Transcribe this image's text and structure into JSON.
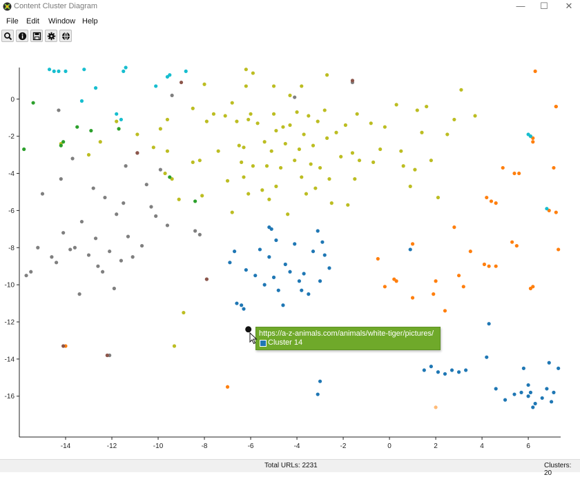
{
  "window": {
    "title": "Content Cluster Diagram",
    "minimize": "—",
    "maximize": "☐",
    "close": "✕"
  },
  "menu": [
    "File",
    "Edit",
    "Window",
    "Help"
  ],
  "toolbar": [
    {
      "name": "search-tool-button",
      "icon": "magnifier-icon"
    },
    {
      "name": "info-tool-button",
      "icon": "info-icon"
    },
    {
      "name": "save-tool-button",
      "icon": "floppy-disk-icon"
    },
    {
      "name": "settings-tool-button",
      "icon": "gear-icon"
    },
    {
      "name": "globe-tool-button",
      "icon": "globe-icon"
    }
  ],
  "tooltip": {
    "url": "https://a-z-animals.com/animals/white-tiger/pictures/",
    "cluster": "Cluster 14",
    "color": "#1f77b4"
  },
  "status": {
    "total": "Total URLs: 2231",
    "clusters": "Clusters: 20"
  },
  "chart_data": {
    "type": "scatter",
    "title": "",
    "xlabel": "",
    "ylabel": "",
    "xlim": [
      -16,
      7.4
    ],
    "ylim": [
      -18.2,
      1.7
    ],
    "xticks": [
      -14,
      -12,
      -10,
      -8,
      -6,
      -4,
      -2,
      0,
      2,
      4,
      6
    ],
    "yticks": [
      0,
      -2,
      -4,
      -6,
      -8,
      -10,
      -12,
      -14,
      -16
    ],
    "grid": false,
    "highlight": {
      "x": -6.1,
      "y": -12.4,
      "cluster": "Cluster 14"
    },
    "series": [
      {
        "color": "#bcbd22",
        "points": [
          [
            -14.2,
            -2.4
          ],
          [
            -13,
            -3
          ],
          [
            -12.5,
            -2.3
          ],
          [
            -11.8,
            -1.2
          ],
          [
            -10.9,
            -1.9
          ],
          [
            -10.2,
            -2.6
          ],
          [
            -9.9,
            -1.6
          ],
          [
            -9.6,
            -2.8
          ],
          [
            -9.7,
            -4
          ],
          [
            -9.4,
            -4.3
          ],
          [
            -9.6,
            -1.1
          ],
          [
            -9.1,
            -5.4
          ],
          [
            -8.9,
            -11.5
          ],
          [
            -9.3,
            -13.3
          ],
          [
            -8.5,
            -3.4
          ],
          [
            -8.2,
            -3.3
          ],
          [
            -8.5,
            -0.5
          ],
          [
            -8.1,
            -5.2
          ],
          [
            -7.9,
            -1.2
          ],
          [
            -7.6,
            -0.8
          ],
          [
            -7.4,
            -2.8
          ],
          [
            -7.1,
            -0.9
          ],
          [
            -7,
            -4.4
          ],
          [
            -6.8,
            -0.2
          ],
          [
            -6.8,
            -6.1
          ],
          [
            -6.6,
            -1.2
          ],
          [
            -6.5,
            -2.5
          ],
          [
            -6.4,
            -3.4
          ],
          [
            -6.3,
            -4.2
          ],
          [
            -6.3,
            -2.6
          ],
          [
            -6.1,
            -1.1
          ],
          [
            -6.1,
            -5.1
          ],
          [
            -6,
            -0.8
          ],
          [
            -5.9,
            -3.6
          ],
          [
            -5.7,
            -1.3
          ],
          [
            -5.5,
            -4.9
          ],
          [
            -5.4,
            -2.3
          ],
          [
            -5.3,
            -3.6
          ],
          [
            -5.2,
            -5.4
          ],
          [
            -5.1,
            -2.8
          ],
          [
            -5,
            -0.8
          ],
          [
            -4.9,
            -1.7
          ],
          [
            -4.9,
            -4.7
          ],
          [
            -4.7,
            -3.7
          ],
          [
            -4.6,
            -1.5
          ],
          [
            -4.5,
            -2.4
          ],
          [
            -4.4,
            -6.2
          ],
          [
            -4.3,
            -1.4
          ],
          [
            -4.1,
            -3.3
          ],
          [
            -4,
            -0.7
          ],
          [
            -3.9,
            -2.7
          ],
          [
            -3.8,
            -4.2
          ],
          [
            -3.7,
            -1.9
          ],
          [
            -3.6,
            -5.1
          ],
          [
            -3.5,
            -0.9
          ],
          [
            -3.4,
            -3.5
          ],
          [
            -3.3,
            -2.5
          ],
          [
            -3.2,
            -4.8
          ],
          [
            -3.1,
            -1.2
          ],
          [
            -3,
            -3.7
          ],
          [
            -2.8,
            -0.6
          ],
          [
            -2.7,
            -2.1
          ],
          [
            -2.6,
            -4.3
          ],
          [
            -2.5,
            -5.6
          ],
          [
            -2.3,
            -1.8
          ],
          [
            -2.1,
            -3.1
          ],
          [
            -1.9,
            -1.4
          ],
          [
            -1.8,
            -5.7
          ],
          [
            -1.6,
            -2.9
          ],
          [
            -1.5,
            -4.3
          ],
          [
            -1.4,
            -0.8
          ],
          [
            -1.3,
            -3.3
          ],
          [
            -0.8,
            -1.3
          ],
          [
            -0.7,
            -3.4
          ],
          [
            -0.4,
            -2.7
          ],
          [
            -0.2,
            -1.5
          ],
          [
            0.3,
            -0.3
          ],
          [
            0.5,
            -2.8
          ],
          [
            0.6,
            -3.6
          ],
          [
            0.9,
            -4.7
          ],
          [
            1.1,
            -3.8
          ],
          [
            1.2,
            -0.6
          ],
          [
            1.4,
            -1.8
          ],
          [
            1.6,
            -0.4
          ],
          [
            1.8,
            -3.3
          ],
          [
            2.1,
            -5.3
          ],
          [
            2.5,
            -1.9
          ],
          [
            2.8,
            -1.1
          ],
          [
            3.1,
            0.5
          ],
          [
            3.7,
            -0.9
          ],
          [
            -3.8,
            0.7
          ],
          [
            -4.3,
            0.2
          ],
          [
            -6.2,
            1.6
          ],
          [
            -5.9,
            1.4
          ],
          [
            -5,
            0.7
          ],
          [
            -6.2,
            0.7
          ],
          [
            -8,
            0.8
          ],
          [
            -2.7,
            1.3
          ]
        ]
      },
      {
        "color": "#7f7f7f",
        "points": [
          [
            -15.7,
            -9.5
          ],
          [
            -15.5,
            -9.3
          ],
          [
            -15.2,
            -8
          ],
          [
            -15,
            -5.1
          ],
          [
            -14.6,
            -8.5
          ],
          [
            -14.4,
            -8.8
          ],
          [
            -14.3,
            -0.6
          ],
          [
            -14.2,
            -4.3
          ],
          [
            -14.1,
            -7.2
          ],
          [
            -13.7,
            -3.2
          ],
          [
            -13.6,
            -8
          ],
          [
            -13.4,
            -10.5
          ],
          [
            -13.3,
            -6.6
          ],
          [
            -13,
            -8.4
          ],
          [
            -12.8,
            -4.8
          ],
          [
            -12.7,
            -7.5
          ],
          [
            -12.6,
            -9
          ],
          [
            -12.4,
            -9.3
          ],
          [
            -12.3,
            -5.3
          ],
          [
            -12.1,
            -8.2
          ],
          [
            -11.9,
            -10.2
          ],
          [
            -11.8,
            -6.2
          ],
          [
            -11.6,
            -8.7
          ],
          [
            -11.5,
            -5.6
          ],
          [
            -11.4,
            -3.6
          ],
          [
            -11.3,
            -7.4
          ],
          [
            -11.1,
            -8.5
          ],
          [
            -10.9,
            -2.9
          ],
          [
            -10.7,
            -7.9
          ],
          [
            -10.5,
            -4.6
          ],
          [
            -10.3,
            -5.8
          ],
          [
            -10.1,
            -6.3
          ],
          [
            -9.9,
            -3.8
          ],
          [
            -9.6,
            -6.8
          ],
          [
            -9.4,
            0.2
          ],
          [
            -8.2,
            -7.3
          ],
          [
            -8.4,
            -7.1
          ],
          [
            -7.9,
            -9.7
          ],
          [
            -12.1,
            -13.8
          ],
          [
            -4.1,
            0.1
          ],
          [
            -1.6,
            0.9
          ],
          [
            -13.8,
            -8.1
          ]
        ]
      },
      {
        "color": "#1f77b4",
        "points": [
          [
            -6.1,
            -12.4
          ],
          [
            -6.6,
            -11
          ],
          [
            -6.4,
            -11.1
          ],
          [
            -6.2,
            -9.2
          ],
          [
            -5.8,
            -9.5
          ],
          [
            -5.6,
            -8.1
          ],
          [
            -5.4,
            -10
          ],
          [
            -5.2,
            -8.5
          ],
          [
            -5,
            -9.6
          ],
          [
            -4.9,
            -7.6
          ],
          [
            -4.8,
            -10.3
          ],
          [
            -4.6,
            -11.1
          ],
          [
            -4.5,
            -8.9
          ],
          [
            -4.3,
            -9.3
          ],
          [
            -4.1,
            -7.8
          ],
          [
            -3.9,
            -9.8
          ],
          [
            -3.7,
            -9.4
          ],
          [
            -3.5,
            -10.5
          ],
          [
            -3.3,
            -8.2
          ],
          [
            -3.1,
            -7.1
          ],
          [
            -3,
            -9.8
          ],
          [
            -2.9,
            -7.7
          ],
          [
            -2.8,
            -8.4
          ],
          [
            -2.6,
            -9.1
          ],
          [
            -3.1,
            -15.9
          ],
          [
            -3,
            -15.2
          ],
          [
            -6.7,
            -8.2
          ],
          [
            -5.1,
            -7
          ],
          [
            -6.9,
            -8.8
          ],
          [
            1.5,
            -14.6
          ],
          [
            1.8,
            -14.4
          ],
          [
            2.1,
            -14.7
          ],
          [
            2.4,
            -14.8
          ],
          [
            2.7,
            -14.6
          ],
          [
            3,
            -14.7
          ],
          [
            3.3,
            -14.6
          ],
          [
            4.2,
            -13.9
          ],
          [
            4.6,
            -15.6
          ],
          [
            5,
            -16.2
          ],
          [
            5.4,
            -15.9
          ],
          [
            5.7,
            -15.8
          ],
          [
            6,
            -15.4
          ],
          [
            6.1,
            -15.8
          ],
          [
            6.3,
            -16.4
          ],
          [
            6.6,
            -16.1
          ],
          [
            6.8,
            -15.6
          ],
          [
            7,
            -16.3
          ],
          [
            7.1,
            -15.8
          ],
          [
            7.3,
            -14.5
          ],
          [
            6.2,
            -16.6
          ],
          [
            6,
            -16
          ],
          [
            5.8,
            -14.5
          ],
          [
            6.9,
            -14.2
          ],
          [
            4.3,
            -12.1
          ],
          [
            0.9,
            -8.1
          ],
          [
            -6.3,
            -11.3
          ],
          [
            -5.2,
            -6.9
          ],
          [
            -3.8,
            -10.3
          ]
        ]
      },
      {
        "color": "#ff7f0e",
        "points": [
          [
            6.3,
            1.5
          ],
          [
            7.2,
            -0.4
          ],
          [
            6.1,
            -2
          ],
          [
            6.2,
            -2.1
          ],
          [
            4.9,
            -3.7
          ],
          [
            5.6,
            -4
          ],
          [
            5.4,
            -4
          ],
          [
            7.1,
            -3.7
          ],
          [
            4.2,
            -5.3
          ],
          [
            4.4,
            -5.5
          ],
          [
            4.6,
            -5.6
          ],
          [
            6.9,
            -6
          ],
          [
            7.2,
            -6.1
          ],
          [
            5.3,
            -7.7
          ],
          [
            5.5,
            -7.9
          ],
          [
            7.3,
            -8.1
          ],
          [
            4.1,
            -8.9
          ],
          [
            4.3,
            -9
          ],
          [
            4.6,
            -9
          ],
          [
            3.5,
            -8.2
          ],
          [
            2.8,
            -6.9
          ],
          [
            3,
            -9.5
          ],
          [
            3.2,
            -10.1
          ],
          [
            2,
            -9.8
          ],
          [
            1,
            -7.8
          ],
          [
            0.3,
            -9.8
          ],
          [
            -0.2,
            -10.1
          ],
          [
            -0.5,
            -8.6
          ],
          [
            1,
            -10.7
          ],
          [
            2.4,
            -11.4
          ],
          [
            6.1,
            -10.2
          ],
          [
            6.2,
            -10.1
          ],
          [
            -14,
            -13.3
          ],
          [
            -7,
            -15.5
          ],
          [
            6.2,
            -2.3
          ],
          [
            0.2,
            -9.7
          ],
          [
            1.9,
            -10.5
          ],
          [
            7.2,
            -0.4
          ]
        ]
      },
      {
        "color": "#17becf",
        "points": [
          [
            -14.7,
            1.6
          ],
          [
            -14.5,
            1.5
          ],
          [
            -14.3,
            1.5
          ],
          [
            -14,
            1.5
          ],
          [
            -13.2,
            1.6
          ],
          [
            -12.7,
            0.6
          ],
          [
            -11.5,
            1.5
          ],
          [
            -11.4,
            1.7
          ],
          [
            -10.1,
            0.7
          ],
          [
            -9.6,
            1.2
          ],
          [
            -9.5,
            1.3
          ],
          [
            -8.8,
            1.5
          ],
          [
            -13.3,
            -0.1
          ],
          [
            -11.8,
            -0.8
          ],
          [
            -11.6,
            -1.1
          ],
          [
            6,
            -1.9
          ],
          [
            6.1,
            -2
          ],
          [
            6.8,
            -5.9
          ]
        ]
      },
      {
        "color": "#2ca02c",
        "points": [
          [
            -15.8,
            -2.7
          ],
          [
            -15.4,
            -0.2
          ],
          [
            -14.1,
            -2.3
          ],
          [
            -13.5,
            -1.5
          ],
          [
            -12.9,
            -1.7
          ],
          [
            -11.7,
            -1.6
          ],
          [
            -9.5,
            -4.2
          ],
          [
            -8.4,
            -5.5
          ],
          [
            -14.2,
            -2.5
          ]
        ]
      },
      {
        "color": "#8c564b",
        "points": [
          [
            -10.9,
            -2.9
          ],
          [
            -7.9,
            -9.7
          ],
          [
            -12.2,
            -13.8
          ],
          [
            -14.1,
            -13.3
          ],
          [
            -1.6,
            1
          ],
          [
            -9,
            0.9
          ]
        ]
      },
      {
        "color": "#ffbb78",
        "points": [
          [
            2,
            -16.6
          ]
        ]
      }
    ]
  }
}
